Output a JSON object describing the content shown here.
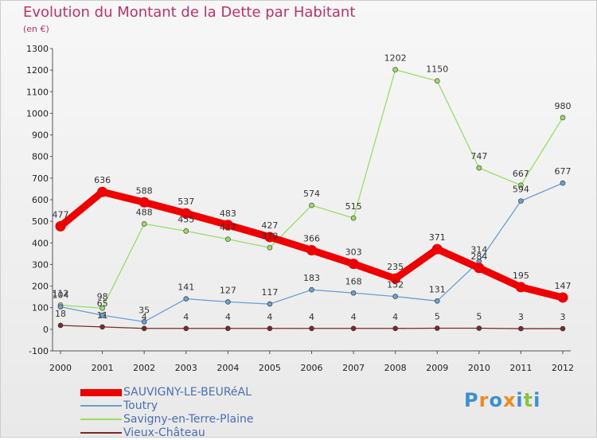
{
  "header": {
    "title": "Evolution du Montant de la Dette par Habitant",
    "unit": "(en €)"
  },
  "logo": {
    "text": "Proxiti"
  },
  "chart_data": {
    "type": "line",
    "title": "Evolution du Montant de la Dette par Habitant",
    "ylabel": "(en €)",
    "x": [
      "2000",
      "2001",
      "2002",
      "2003",
      "2004",
      "2005",
      "2006",
      "2007",
      "2008",
      "2009",
      "2010",
      "2011",
      "2012"
    ],
    "ylim": [
      -100,
      1300
    ],
    "yticks": [
      "-100",
      "0",
      "100",
      "200",
      "300",
      "400",
      "500",
      "600",
      "700",
      "800",
      "900",
      "1000",
      "1100",
      "1200",
      "1300"
    ],
    "grid": false,
    "legend_position": "bottom-left",
    "series": [
      {
        "name": "SAUVIGNY-LE-BEURéAL",
        "color": "#ee0000",
        "values": [
          477,
          636,
          588,
          537,
          483,
          427,
          366,
          303,
          235,
          371,
          284,
          195,
          147
        ]
      },
      {
        "name": "Toutry",
        "color": "#6a9fd0",
        "values": [
          104,
          65,
          35,
          141,
          127,
          117,
          183,
          168,
          152,
          131,
          314,
          594,
          677
        ]
      },
      {
        "name": "Savigny-en-Terre-Plaine",
        "color": "#99dd66",
        "values": [
          112,
          98,
          488,
          455,
          417,
          378,
          574,
          515,
          1202,
          1150,
          747,
          667,
          980
        ]
      },
      {
        "name": "Vieux-Château",
        "color": "#7a2a2a",
        "values": [
          18,
          11,
          4,
          4,
          4,
          4,
          4,
          4,
          4,
          5,
          5,
          3,
          3
        ]
      }
    ],
    "data_labels": [
      [
        "477",
        "636",
        "588",
        "537",
        "483",
        "427",
        "366",
        "303",
        "235",
        "371",
        "284",
        "195",
        "147"
      ],
      [
        "104",
        "65",
        "35",
        "141",
        "127",
        "117",
        "183",
        "168",
        "152",
        "131",
        "314",
        "594",
        "677"
      ],
      [
        "112",
        "98",
        "488",
        "455",
        "417",
        "378",
        "574",
        "515",
        "1202",
        "1150",
        "747",
        "667",
        "980"
      ],
      [
        "18",
        "11",
        "4",
        "4",
        "4",
        "4",
        "4",
        "4",
        "4",
        "5",
        "5",
        "3",
        "3"
      ]
    ]
  }
}
